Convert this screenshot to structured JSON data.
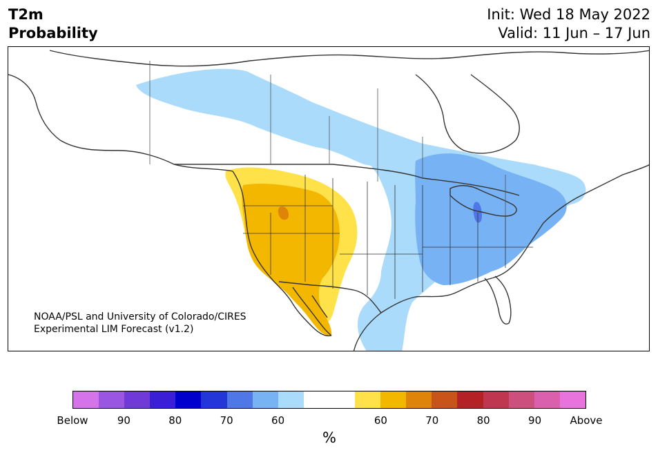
{
  "header": {
    "variable": "T2m",
    "product": "Probability",
    "init": "Init: Wed 18 May 2022",
    "valid": "Valid: 11 Jun – 17 Jun"
  },
  "credit": {
    "line1": "NOAA/PSL and University of Colorado/CIRES",
    "line2": "Experimental LIM Forecast (v1.2)"
  },
  "legend": {
    "unit": "%",
    "colors": [
      "#d473ea",
      "#9b55e3",
      "#6f3ad8",
      "#3b1fd6",
      "#0000cd",
      "#2337d9",
      "#5077e8",
      "#76b2f4",
      "#aadbfb",
      "#ffffff",
      "#ffffff",
      "#ffe24a",
      "#f4b700",
      "#de8509",
      "#c9541a",
      "#b52226",
      "#c03550",
      "#cd4f7e",
      "#da60ad",
      "#e873dd"
    ],
    "tick_labels": [
      "Below",
      "90",
      "80",
      "70",
      "60",
      "60",
      "70",
      "80",
      "90",
      "Above"
    ]
  },
  "map_colors": {
    "below_60": "#aadbfb",
    "below_70": "#76b2f4",
    "below_80": "#5077e8",
    "above_60": "#ffe24a",
    "above_70": "#f4b700",
    "above_80": "#de8509",
    "coastline": "#333333"
  }
}
